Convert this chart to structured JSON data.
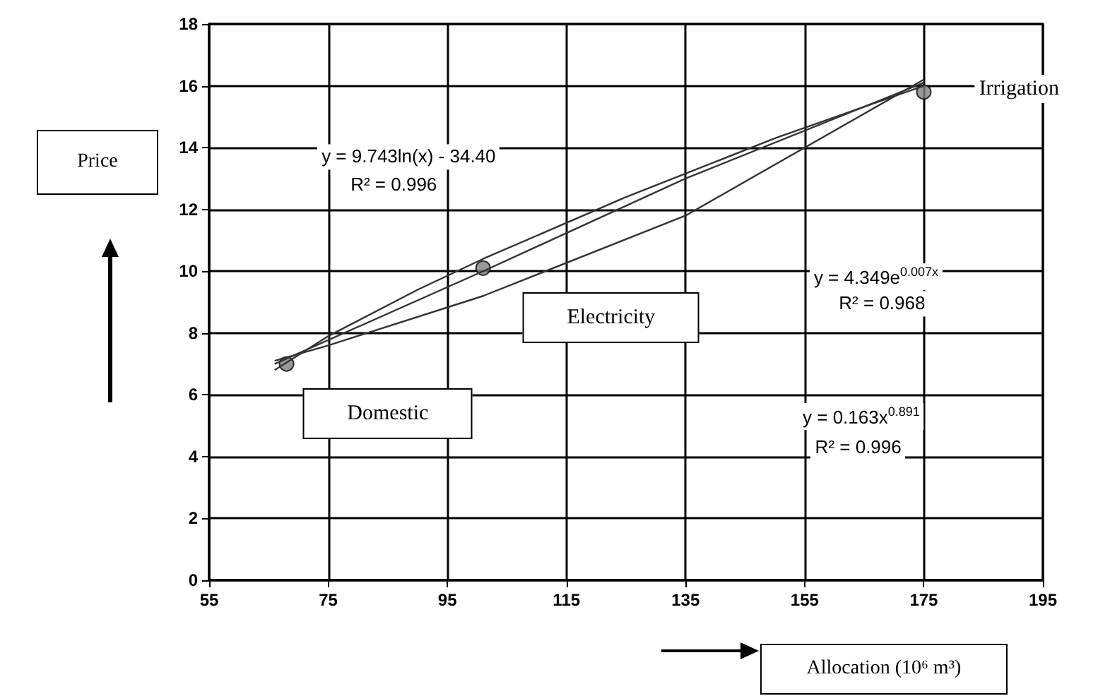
{
  "chart_data": {
    "type": "scatter",
    "xlabel": "Allocation (10⁶ m³)",
    "ylabel": "Price",
    "xlim": [
      55,
      195
    ],
    "xticks": [
      55,
      75,
      95,
      115,
      135,
      155,
      175,
      195
    ],
    "ylim": [
      0,
      18
    ],
    "yticks": [
      0,
      2,
      4,
      6,
      8,
      10,
      12,
      14,
      16,
      18
    ],
    "grid": true,
    "marker": "circle",
    "series": [
      {
        "color": "#808080",
        "x": [
          68,
          101,
          175
        ],
        "values": [
          7,
          10.1,
          15.8
        ]
      },
      {
        "type": "line",
        "marker": "none",
        "color": "#333333",
        "x": [
          66,
          75,
          90,
          101,
          125,
          150,
          175
        ],
        "values": [
          6.8,
          7.9,
          9.4,
          10.4,
          12.4,
          14.3,
          16.0
        ]
      },
      {
        "type": "line",
        "marker": "none",
        "color": "#333333",
        "x": [
          66,
          101,
          135,
          175
        ],
        "values": [
          7.0,
          10.0,
          13.0,
          16.1
        ]
      },
      {
        "type": "line",
        "marker": "none",
        "color": "#333333",
        "x": [
          66,
          75,
          101,
          135,
          175
        ],
        "values": [
          7.1,
          7.6,
          9.2,
          11.8,
          16.2
        ]
      }
    ],
    "annotations": [
      "Domestic",
      "Electricity",
      "Irrigation",
      "y = 9.743ln(x) - 34.40",
      "R² = 0.996",
      "y = 4.349e$^{0.007x}$",
      "R² = 0.968",
      "y = 0.163x$^{0.891}$",
      "R² = 0.996"
    ]
  }
}
